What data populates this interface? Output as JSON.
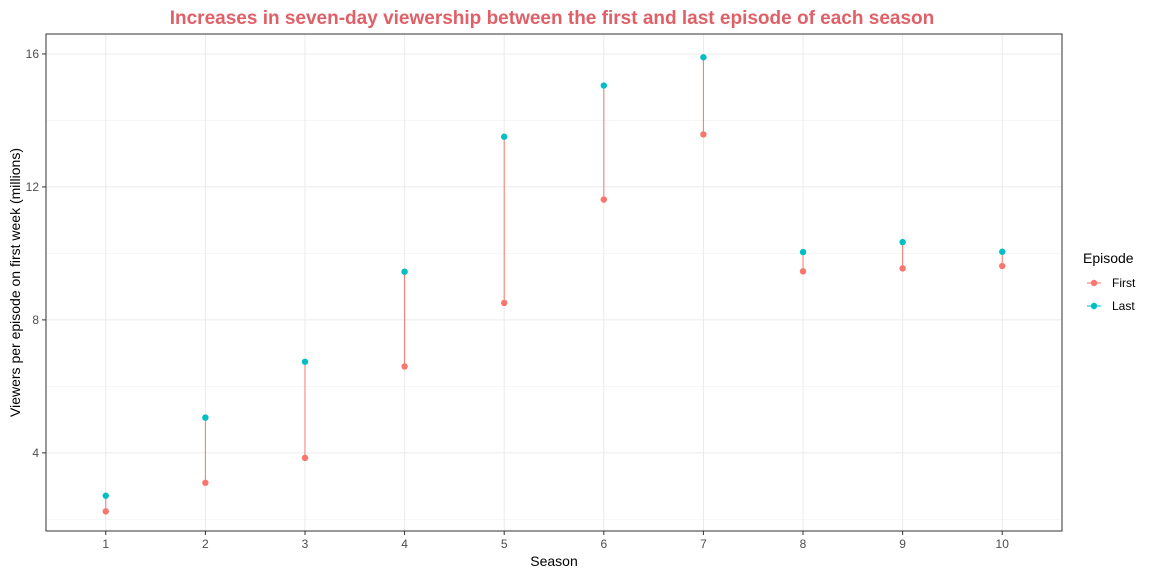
{
  "colors": {
    "first": "#F8766D",
    "last": "#00BFC4",
    "title": "#E06068",
    "grid_major": "#EBEBEB",
    "grid_minor": "#F2F2F2",
    "panel_border": "#333333"
  },
  "chart_data": {
    "type": "scatter",
    "title": "Increases in seven-day viewership between the first and last episode of each season",
    "xlabel": "Season",
    "ylabel": "Viewers per episode on first week (millions)",
    "x": [
      1,
      2,
      3,
      4,
      5,
      6,
      7,
      8,
      9,
      10
    ],
    "xlim": [
      0.4,
      10.6
    ],
    "ylim": [
      1.65,
      16.6
    ],
    "x_ticks": [
      1,
      2,
      3,
      4,
      5,
      6,
      7,
      8,
      9,
      10
    ],
    "y_ticks": [
      4,
      8,
      12,
      16
    ],
    "grid": true,
    "legend": {
      "title": "Episode",
      "position": "right",
      "entries": [
        "First",
        "Last"
      ]
    },
    "series": [
      {
        "name": "First",
        "values": [
          2.24,
          3.1,
          3.85,
          6.6,
          8.51,
          11.62,
          13.58,
          9.46,
          9.55,
          9.62
        ]
      },
      {
        "name": "Last",
        "values": [
          2.71,
          5.06,
          6.74,
          9.45,
          13.51,
          15.05,
          15.9,
          10.04,
          10.34,
          10.05
        ]
      }
    ]
  }
}
